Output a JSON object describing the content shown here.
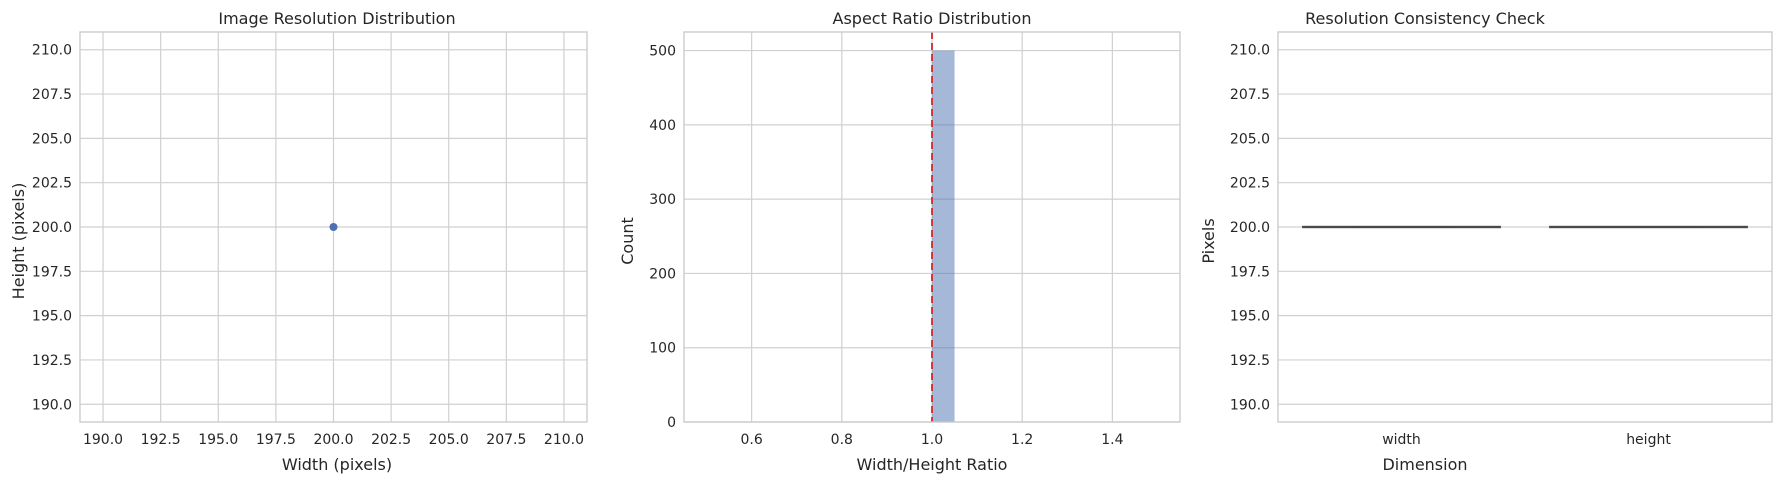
{
  "chart_data": [
    {
      "type": "scatter",
      "title": "Image Resolution Distribution",
      "xlabel": "Width (pixels)",
      "ylabel": "Height (pixels)",
      "xlim": [
        189,
        211
      ],
      "ylim": [
        189,
        211
      ],
      "xticks": [
        "190.0",
        "192.5",
        "195.0",
        "197.5",
        "200.0",
        "202.5",
        "205.0",
        "207.5",
        "210.0"
      ],
      "yticks": [
        "190.0",
        "192.5",
        "195.0",
        "197.5",
        "200.0",
        "202.5",
        "205.0",
        "207.5",
        "210.0"
      ],
      "points": [
        {
          "x": 200,
          "y": 200
        }
      ],
      "color": "#4c72b0",
      "grid": true
    },
    {
      "type": "bar",
      "title": "Aspect Ratio Distribution",
      "xlabel": "Width/Height Ratio",
      "ylabel": "Count",
      "xlim": [
        0.45,
        1.55
      ],
      "ylim": [
        0,
        525
      ],
      "xticks": [
        "0.6",
        "0.8",
        "1.0",
        "1.2",
        "1.4"
      ],
      "yticks": [
        "0",
        "100",
        "200",
        "300",
        "400",
        "500"
      ],
      "bins": [
        {
          "start": 1.0,
          "end": 1.05,
          "count": 500
        }
      ],
      "reference_line": {
        "x": 1.0,
        "style": "dashed",
        "color": "#d62728"
      },
      "color": "#4c72b0",
      "grid": true
    },
    {
      "type": "box",
      "title": "Resolution Consistency Check",
      "xlabel": "Dimension",
      "ylabel": "Pixels",
      "categories": [
        "width",
        "height"
      ],
      "ylim": [
        189,
        211
      ],
      "yticks": [
        "190.0",
        "192.5",
        "195.0",
        "197.5",
        "200.0",
        "202.5",
        "205.0",
        "207.5",
        "210.0"
      ],
      "boxes": [
        {
          "category": "width",
          "min": 200,
          "q1": 200,
          "median": 200,
          "q3": 200,
          "max": 200
        },
        {
          "category": "height",
          "min": 200,
          "q1": 200,
          "median": 200,
          "q3": 200,
          "max": 200
        }
      ],
      "color": "#4c72b0",
      "grid": true
    }
  ]
}
